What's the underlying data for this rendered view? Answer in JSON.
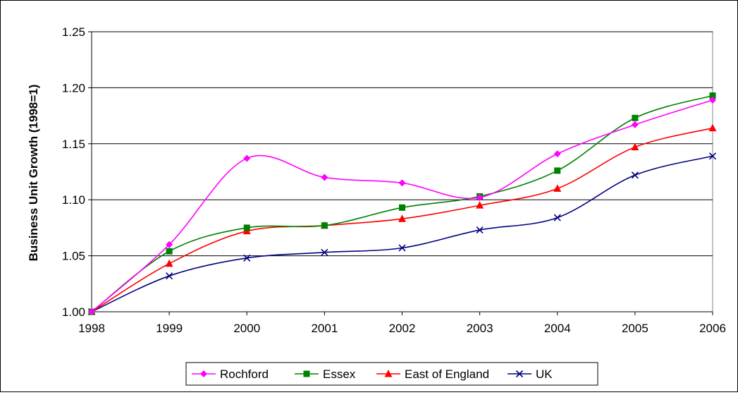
{
  "chart_data": {
    "type": "line",
    "title": "",
    "xlabel": "",
    "ylabel": "Business Unit Growth (1998=1)",
    "x": [
      "1998",
      "1999",
      "2000",
      "2001",
      "2002",
      "2003",
      "2004",
      "2005",
      "2006"
    ],
    "ylim": [
      1.0,
      1.25
    ],
    "yticks": [
      "1.00",
      "1.05",
      "1.10",
      "1.15",
      "1.20",
      "1.25"
    ],
    "grid": "horizontal",
    "legend_position": "bottom",
    "series": [
      {
        "name": "Rochford",
        "color": "#ff00ff",
        "marker": "diamond",
        "values": [
          1.0,
          1.06,
          1.137,
          1.12,
          1.115,
          1.102,
          1.141,
          1.167,
          1.189
        ]
      },
      {
        "name": "Essex",
        "color": "#008000",
        "marker": "square",
        "values": [
          1.0,
          1.054,
          1.075,
          1.077,
          1.093,
          1.103,
          1.126,
          1.173,
          1.193
        ]
      },
      {
        "name": "East of England",
        "color": "#ff0000",
        "marker": "triangle",
        "values": [
          1.0,
          1.043,
          1.072,
          1.077,
          1.083,
          1.095,
          1.11,
          1.147,
          1.164
        ]
      },
      {
        "name": "UK",
        "color": "#000080",
        "marker": "x",
        "values": [
          1.0,
          1.032,
          1.048,
          1.053,
          1.057,
          1.073,
          1.084,
          1.122,
          1.139
        ]
      }
    ]
  }
}
